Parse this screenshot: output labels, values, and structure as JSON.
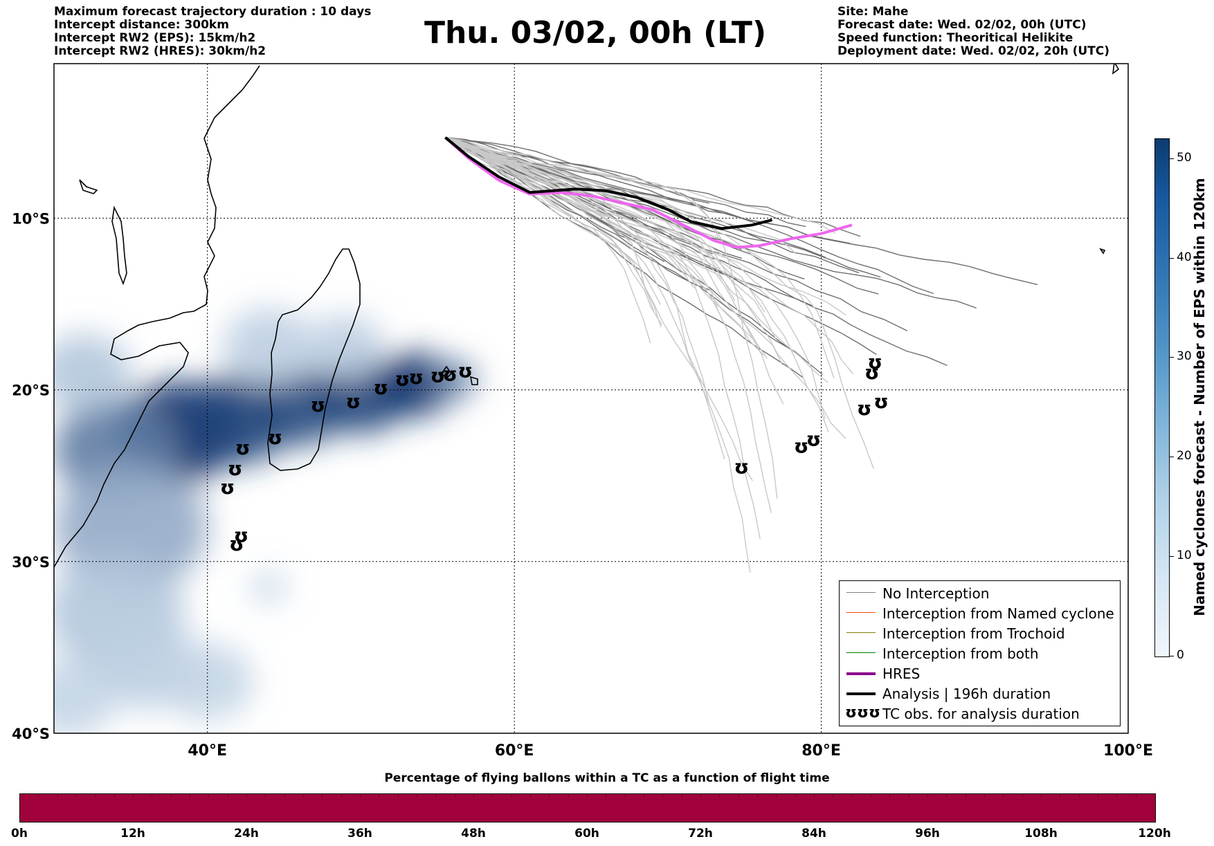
{
  "header": {
    "left_lines": [
      "Maximum forecast trajectory duration : 10 days",
      "Intercept distance: 300km",
      "Intercept RW2 (EPS):  15km/h2",
      "Intercept RW2 (HRES): 30km/h2"
    ],
    "title": "Thu. 03/02, 00h (LT)",
    "right_lines": [
      "Site: Mahe",
      "Forecast date: Wed. 02/02, 00h (UTC)",
      "Speed function: Theoritical Helikite",
      "Deployment date: Wed. 02/02, 20h (UTC)"
    ]
  },
  "map": {
    "lon_range": [
      30,
      100
    ],
    "lat_range": [
      -40,
      -1
    ],
    "lat_labels": [
      {
        "lat": -10,
        "label": "10°S"
      },
      {
        "lat": -20,
        "label": "20°S"
      },
      {
        "lat": -30,
        "label": "30°S"
      },
      {
        "lat": -40,
        "label": "40°S"
      }
    ],
    "lon_labels": [
      {
        "lon": 40,
        "label": "40°E"
      },
      {
        "lon": 60,
        "label": "60°E"
      },
      {
        "lon": 80,
        "label": "80°E"
      },
      {
        "lon": 100,
        "label": "100°E"
      }
    ],
    "grid_lats": [
      -10,
      -20,
      -30
    ],
    "grid_lons": [
      40,
      60,
      80
    ],
    "colors": {
      "no_interception": "#808080",
      "named_cyclone": "#ff4500",
      "trochoid": "#808000",
      "both": "#008000",
      "hres": "#ee66ee",
      "hres_legend": "#8b008b",
      "analysis": "#000000",
      "density_high": "#08306b",
      "density_low": "#deebf7"
    },
    "hres_track": [
      [
        55.5,
        -5.3
      ],
      [
        57,
        -6.5
      ],
      [
        59,
        -7.8
      ],
      [
        61,
        -8.6
      ],
      [
        63,
        -8.5
      ],
      [
        65,
        -8.7
      ],
      [
        67,
        -9.1
      ],
      [
        69,
        -9.5
      ],
      [
        71,
        -10.4
      ],
      [
        73,
        -11.3
      ],
      [
        74.5,
        -11.7
      ],
      [
        76,
        -11.6
      ],
      [
        78,
        -11.2
      ],
      [
        80,
        -10.9
      ],
      [
        82,
        -10.4
      ]
    ],
    "analysis_track": [
      [
        55.5,
        -5.3
      ],
      [
        57,
        -6.4
      ],
      [
        59,
        -7.6
      ],
      [
        61,
        -8.5
      ],
      [
        62.5,
        -8.4
      ],
      [
        64,
        -8.3
      ],
      [
        66,
        -8.4
      ],
      [
        68,
        -8.8
      ],
      [
        70,
        -9.5
      ],
      [
        71.5,
        -10.2
      ],
      [
        73.5,
        -10.6
      ],
      [
        75.5,
        -10.4
      ],
      [
        76.8,
        -10.1
      ]
    ],
    "tc_obs": [
      [
        42.2,
        -28.5
      ],
      [
        41.9,
        -29
      ],
      [
        41.3,
        -25.7
      ],
      [
        41.8,
        -24.6
      ],
      [
        42.3,
        -23.4
      ],
      [
        44.4,
        -22.8
      ],
      [
        47.2,
        -20.9
      ],
      [
        49.5,
        -20.7
      ],
      [
        51.3,
        -19.9
      ],
      [
        52.7,
        -19.4
      ],
      [
        53.6,
        -19.3
      ],
      [
        55,
        -19.2
      ],
      [
        55.8,
        -19.1
      ],
      [
        56.8,
        -18.9
      ],
      [
        74.8,
        -24.5
      ],
      [
        78.7,
        -23.3
      ],
      [
        79.5,
        -22.9
      ],
      [
        82.8,
        -21.1
      ],
      [
        83.9,
        -20.7
      ],
      [
        83.3,
        -19
      ],
      [
        83.5,
        -18.4
      ]
    ],
    "density_blobs": [
      {
        "lon": 38,
        "lat": -22.5,
        "r": 4,
        "v": 1
      },
      {
        "lon": 42,
        "lat": -21.7,
        "r": 3.5,
        "v": 0.9
      },
      {
        "lon": 46,
        "lat": -21,
        "r": 3,
        "v": 0.85
      },
      {
        "lon": 50,
        "lat": -20.3,
        "r": 3,
        "v": 0.9
      },
      {
        "lon": 53.5,
        "lat": -19.7,
        "r": 2.5,
        "v": 1
      },
      {
        "lon": 56,
        "lat": -19.4,
        "r": 1.5,
        "v": 0.6
      },
      {
        "lon": 34,
        "lat": -23.5,
        "r": 4,
        "v": 0.6
      },
      {
        "lon": 35,
        "lat": -28,
        "r": 5,
        "v": 0.35
      },
      {
        "lon": 34,
        "lat": -33,
        "r": 4.5,
        "v": 0.2
      },
      {
        "lon": 36,
        "lat": -36,
        "r": 3.5,
        "v": 0.15
      },
      {
        "lon": 31,
        "lat": -38,
        "r": 3,
        "v": 0.12
      },
      {
        "lon": 40,
        "lat": -37,
        "r": 3,
        "v": 0.12
      },
      {
        "lon": 44,
        "lat": -31.5,
        "r": 1.2,
        "v": 0.12
      },
      {
        "lon": 32,
        "lat": -19,
        "r": 3,
        "v": 0.2
      },
      {
        "lon": 44,
        "lat": -17.5,
        "r": 3,
        "v": 0.15
      },
      {
        "lon": 49,
        "lat": -17.5,
        "r": 2.5,
        "v": 0.15
      }
    ]
  },
  "legend": {
    "items": [
      {
        "label": "No Interception",
        "color": "#808080",
        "width": 1.5
      },
      {
        "label": "Interception from Named cyclone",
        "color": "#ff4500",
        "width": 1.5
      },
      {
        "label": "Interception from Trochoid",
        "color": "#808000",
        "width": 1.5
      },
      {
        "label": "Interception from both",
        "color": "#008000",
        "width": 1.5
      },
      {
        "label": "HRES",
        "color": "#8b008b",
        "width": 4
      },
      {
        "label": "Analysis | 196h duration",
        "color": "#000000",
        "width": 4
      },
      {
        "label": "TC obs. for analysis duration",
        "color": "",
        "width": 0
      }
    ],
    "tc_symbol": "ʊʊʊ"
  },
  "colorbar": {
    "title": "Named cyclones forecast - Number of EPS within 120km",
    "min": 0,
    "max": 52,
    "ticks": [
      "0",
      "10",
      "20",
      "30",
      "40",
      "50"
    ]
  },
  "flight_bar": {
    "title": "Percentage of flying ballons within a TC as a function of flight time",
    "color": "#a0003c",
    "ticks": [
      "0h",
      "12h",
      "24h",
      "36h",
      "48h",
      "60h",
      "72h",
      "84h",
      "96h",
      "108h",
      "120h"
    ]
  }
}
